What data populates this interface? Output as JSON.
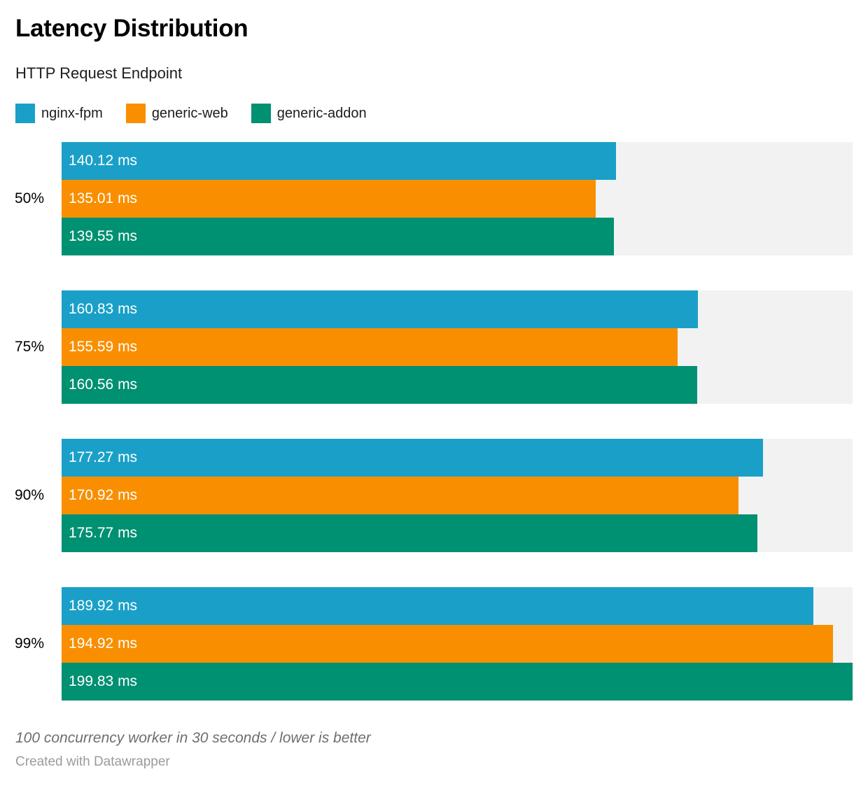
{
  "header": {
    "title": "Latency Distribution",
    "subtitle": "HTTP Request Endpoint"
  },
  "chart_data": {
    "type": "bar",
    "orientation": "horizontal",
    "title": "Latency Distribution",
    "subtitle": "HTTP Request Endpoint",
    "categories": [
      "50%",
      "75%",
      "90%",
      "99%"
    ],
    "series": [
      {
        "name": "nginx-fpm",
        "color": "#1aa0c8",
        "values": [
          140.12,
          160.83,
          177.27,
          189.92
        ]
      },
      {
        "name": "generic-web",
        "color": "#f98f00",
        "values": [
          135.01,
          155.59,
          170.92,
          194.92
        ]
      },
      {
        "name": "generic-addon",
        "color": "#009072",
        "values": [
          139.55,
          160.56,
          175.77,
          199.83
        ]
      }
    ],
    "value_suffix": " ms",
    "value_decimals": 2,
    "xlim": [
      0,
      199.83
    ],
    "track_color": "#f2f2f2",
    "grid": false,
    "legend_position": "top",
    "value_labels_inside_bars": true
  },
  "footer": {
    "note": "100 concurrency worker in 30 seconds / lower is better",
    "credit": "Created with Datawrapper"
  }
}
